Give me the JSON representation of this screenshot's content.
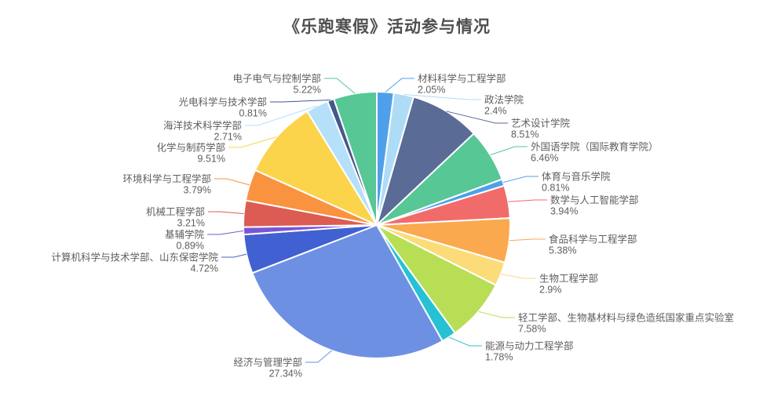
{
  "chart_data": {
    "type": "pie",
    "title": "《乐跑寒假》活动参与情况",
    "legend_position": "none",
    "start_angle": "12-o-clock, clockwise",
    "label_style": "outside labels with leader lines, name on first line, percent on second line",
    "background_color": "#ffffff",
    "title_color": "#4f4f4f",
    "label_text_color": "#5e5e5e",
    "slices": [
      {
        "name": "材料科学与工程学部",
        "value": 2.05,
        "pct_label": "2.05%",
        "color": "#4FA0EA"
      },
      {
        "name": "政法学院",
        "value": 2.4,
        "pct_label": "2.4%",
        "color": "#AEDCF7"
      },
      {
        "name": "艺术设计学院",
        "value": 8.51,
        "pct_label": "8.51%",
        "color": "#5A6B96"
      },
      {
        "name": "外国语学院（国际教育学院）",
        "value": 6.46,
        "pct_label": "6.46%",
        "color": "#56C795"
      },
      {
        "name": "体育与音乐学院",
        "value": 0.81,
        "pct_label": "0.81%",
        "color": "#4FA0EA"
      },
      {
        "name": "数学与人工智能学部",
        "value": 3.94,
        "pct_label": "3.94%",
        "color": "#F16B6B"
      },
      {
        "name": "食品科学与工程学部",
        "value": 5.38,
        "pct_label": "5.38%",
        "color": "#FAA94E"
      },
      {
        "name": "生物工程学部",
        "value": 2.9,
        "pct_label": "2.9%",
        "color": "#FBDC78"
      },
      {
        "name": "轻工学部、生物基材料与绿色造纸国家重点实验室",
        "value": 7.58,
        "pct_label": "7.58%",
        "color": "#B8DE55"
      },
      {
        "name": "能源与动力工程学部",
        "value": 1.78,
        "pct_label": "1.78%",
        "color": "#26C2D3"
      },
      {
        "name": "经济与管理学部",
        "value": 27.34,
        "pct_label": "27.34%",
        "color": "#6E90E3"
      },
      {
        "name": "计算机科学与技术学部、山东保密学院",
        "value": 4.72,
        "pct_label": "4.72%",
        "color": "#4160D1"
      },
      {
        "name": "基辅学院",
        "value": 0.89,
        "pct_label": "0.89%",
        "color": "#7A55D3"
      },
      {
        "name": "机械工程学部",
        "value": 3.21,
        "pct_label": "3.21%",
        "color": "#DC5B52"
      },
      {
        "name": "环境科学与工程学部",
        "value": 3.79,
        "pct_label": "3.79%",
        "color": "#F9933F"
      },
      {
        "name": "化学与制药学部",
        "value": 9.51,
        "pct_label": "9.51%",
        "color": "#FBD44C"
      },
      {
        "name": "海洋技术科学学部",
        "value": 2.71,
        "pct_label": "2.71%",
        "color": "#B5E0F9"
      },
      {
        "name": "光电科学与技术学部",
        "value": 0.81,
        "pct_label": "0.81%",
        "color": "#46578B"
      },
      {
        "name": "电子电气与控制学部",
        "value": 5.22,
        "pct_label": "5.22%",
        "color": "#56C795"
      }
    ]
  }
}
